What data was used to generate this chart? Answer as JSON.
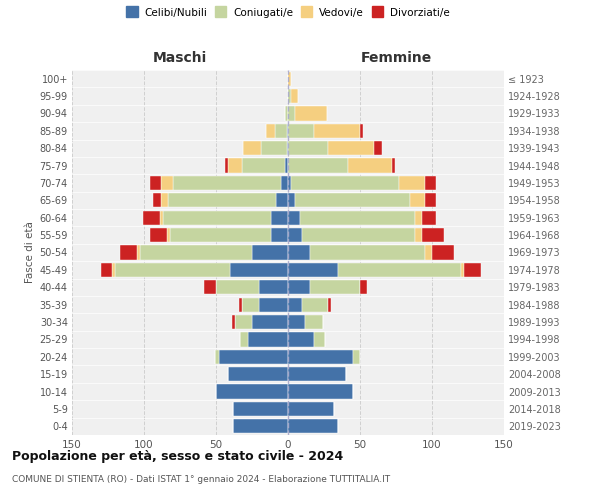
{
  "age_groups": [
    "0-4",
    "5-9",
    "10-14",
    "15-19",
    "20-24",
    "25-29",
    "30-34",
    "35-39",
    "40-44",
    "45-49",
    "50-54",
    "55-59",
    "60-64",
    "65-69",
    "70-74",
    "75-79",
    "80-84",
    "85-89",
    "90-94",
    "95-99",
    "100+"
  ],
  "birth_years": [
    "2019-2023",
    "2014-2018",
    "2009-2013",
    "2004-2008",
    "1999-2003",
    "1994-1998",
    "1989-1993",
    "1984-1988",
    "1979-1983",
    "1974-1978",
    "1969-1973",
    "1964-1968",
    "1959-1963",
    "1954-1958",
    "1949-1953",
    "1944-1948",
    "1939-1943",
    "1934-1938",
    "1929-1933",
    "1924-1928",
    "≤ 1923"
  ],
  "colors": {
    "celibi": "#4472a8",
    "coniugati": "#c5d5a0",
    "vedovi": "#f5cf80",
    "divorziati": "#cc2222"
  },
  "maschi": {
    "celibi": [
      38,
      38,
      50,
      42,
      48,
      28,
      25,
      20,
      20,
      40,
      25,
      12,
      12,
      8,
      5,
      2,
      1,
      1,
      0,
      0,
      0
    ],
    "coniugati": [
      0,
      0,
      0,
      0,
      3,
      5,
      12,
      12,
      30,
      80,
      78,
      70,
      75,
      75,
      75,
      30,
      18,
      8,
      2,
      0,
      0
    ],
    "vedovi": [
      0,
      0,
      0,
      0,
      0,
      0,
      0,
      0,
      0,
      2,
      2,
      2,
      2,
      5,
      8,
      10,
      12,
      6,
      0,
      0,
      0
    ],
    "divorziati": [
      0,
      0,
      0,
      0,
      0,
      0,
      2,
      2,
      8,
      8,
      12,
      12,
      12,
      6,
      8,
      2,
      0,
      0,
      0,
      0,
      0
    ]
  },
  "femmine": {
    "celibi": [
      35,
      32,
      45,
      40,
      45,
      18,
      12,
      10,
      15,
      35,
      15,
      10,
      8,
      5,
      2,
      0,
      0,
      0,
      0,
      0,
      0
    ],
    "coniugati": [
      0,
      0,
      0,
      0,
      5,
      8,
      12,
      18,
      35,
      85,
      80,
      78,
      80,
      80,
      75,
      42,
      28,
      18,
      5,
      2,
      0
    ],
    "vedovi": [
      0,
      0,
      0,
      0,
      0,
      0,
      0,
      0,
      0,
      2,
      5,
      5,
      5,
      10,
      18,
      30,
      32,
      32,
      22,
      5,
      2
    ],
    "divorziati": [
      0,
      0,
      0,
      0,
      0,
      0,
      0,
      2,
      5,
      12,
      15,
      15,
      10,
      8,
      8,
      2,
      5,
      2,
      0,
      0,
      0
    ]
  },
  "xlim": 150,
  "title": "Popolazione per età, sesso e stato civile - 2024",
  "subtitle": "COMUNE DI STIENTA (RO) - Dati ISTAT 1° gennaio 2024 - Elaborazione TUTTITALIA.IT",
  "ylabel_left": "Fasce di età",
  "xlabel_maschi": "Maschi",
  "xlabel_femmine": "Femmine",
  "legend_labels": [
    "Celibi/Nubili",
    "Coniugati/e",
    "Vedovi/e",
    "Divorziati/e"
  ],
  "background_color": "#ffffff",
  "plot_bg": "#f0f0f0",
  "grid_color": "#cccccc"
}
